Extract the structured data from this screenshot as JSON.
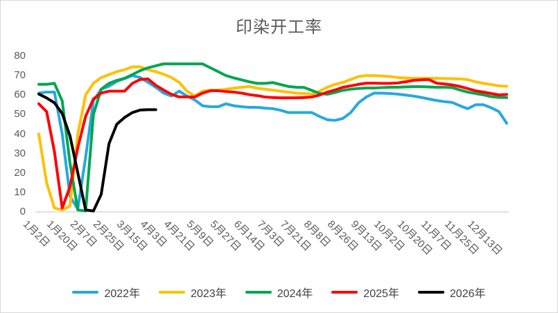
{
  "chart_data": {
    "type": "line",
    "title": "印染开工率",
    "xlabel": "",
    "ylabel": "",
    "ylim": [
      0,
      80
    ],
    "y_ticks": [
      0,
      10,
      20,
      30,
      40,
      50,
      60,
      70,
      80
    ],
    "grid": false,
    "legend_position": "bottom",
    "x_tick_labels": [
      "1月2日",
      "1月20日",
      "2月7日",
      "2月25日",
      "3月15日",
      "4月3日",
      "4月21日",
      "5月9日",
      "5月27日",
      "6月14日",
      "7月3日",
      "7月21日",
      "8月8日",
      "8月26日",
      "9月13日",
      "10月2日",
      "10月20日",
      "11月7日",
      "11月25日",
      "12月13日"
    ],
    "points_per_tick": 3,
    "n_points": 61,
    "axis_line_color": "#D9D9D9",
    "axis_text_color": "#595959",
    "series": [
      {
        "name": "2022年",
        "color": "#27A8E0",
        "values": [
          61,
          61.5,
          61.5,
          40,
          8,
          1.5,
          28,
          57,
          63,
          64.5,
          67,
          68.5,
          70,
          69,
          66.5,
          64,
          61,
          59.5,
          62,
          59.5,
          57.5,
          54.5,
          54,
          54,
          55.5,
          54.5,
          54,
          53.7,
          53.7,
          53.3,
          53,
          52.2,
          51,
          51,
          51,
          51,
          49,
          47.3,
          47,
          48,
          51,
          56,
          59,
          61,
          61,
          60.8,
          60.5,
          60,
          59.5,
          58.8,
          58,
          57.2,
          56.6,
          56.2,
          54.5,
          53,
          55,
          55,
          53.5,
          51.5,
          45.5
        ]
      },
      {
        "name": "2023年",
        "color": "#FFC000",
        "values": [
          40,
          15,
          2,
          1,
          3,
          40,
          60,
          66,
          69,
          70.5,
          72,
          73,
          74.5,
          74.5,
          73,
          72,
          70.7,
          69,
          66.5,
          62,
          59.5,
          62,
          62.5,
          62.5,
          63,
          63.5,
          64,
          64.4,
          63.5,
          63,
          62.5,
          62,
          61.5,
          61,
          60.8,
          60.5,
          62,
          64,
          65.5,
          66.5,
          68,
          69.5,
          70,
          70,
          69.8,
          69.5,
          69,
          68.8,
          68.6,
          68.6,
          68.6,
          68.6,
          68.5,
          68.4,
          68.3,
          67.9,
          66.8,
          66,
          65.4,
          64.7,
          64.5
        ]
      },
      {
        "name": "2024年",
        "color": "#00A650",
        "values": [
          65.5,
          65.5,
          66,
          57,
          25,
          1,
          0.5,
          50,
          63,
          66,
          67.5,
          68.6,
          70.5,
          72.5,
          74,
          75,
          76,
          76,
          76,
          76,
          76,
          76,
          74,
          72,
          70,
          68.8,
          67.8,
          66.8,
          66,
          66,
          66.4,
          65.4,
          64.4,
          64,
          63.9,
          62.4,
          60.8,
          60.4,
          61.3,
          62.4,
          63,
          63.4,
          63.6,
          63.6,
          63.8,
          64,
          64,
          64.2,
          64.3,
          64.3,
          64.2,
          64,
          64,
          63.8,
          62.6,
          61.5,
          60.8,
          60.1,
          59.2,
          58.8,
          58.7
        ]
      },
      {
        "name": "2025年",
        "color": "#FF0000",
        "values": [
          55.5,
          51.5,
          31,
          2,
          13,
          33,
          49,
          58,
          61,
          62,
          62,
          62,
          66,
          68,
          68.3,
          65,
          62.6,
          60.4,
          59,
          59,
          59,
          61,
          62.2,
          62.2,
          61.8,
          61.5,
          61,
          60.2,
          59.7,
          59,
          58.7,
          58.6,
          58.6,
          58.6,
          58.7,
          59,
          60,
          61.5,
          62.6,
          64,
          64.7,
          65.5,
          66.1,
          66.1,
          66,
          66,
          66.2,
          66.8,
          67.5,
          67.8,
          68,
          66.1,
          65.7,
          65.2,
          64.4,
          63.3,
          62.2,
          61.5,
          60.8,
          60.1,
          60.3
        ]
      },
      {
        "name": "2026年",
        "color": "#000000",
        "values": [
          60.5,
          58.5,
          56,
          50.5,
          39,
          20,
          1,
          0.5,
          9,
          35,
          45,
          48.5,
          51,
          52.3,
          52.5,
          52.5,
          null,
          null,
          null,
          null,
          null,
          null,
          null,
          null,
          null,
          null,
          null,
          null,
          null,
          null,
          null,
          null,
          null,
          null,
          null,
          null,
          null,
          null,
          null,
          null,
          null,
          null,
          null,
          null,
          null,
          null,
          null,
          null,
          null,
          null,
          null,
          null,
          null,
          null,
          null,
          null,
          null,
          null,
          null,
          null,
          null
        ]
      }
    ]
  }
}
